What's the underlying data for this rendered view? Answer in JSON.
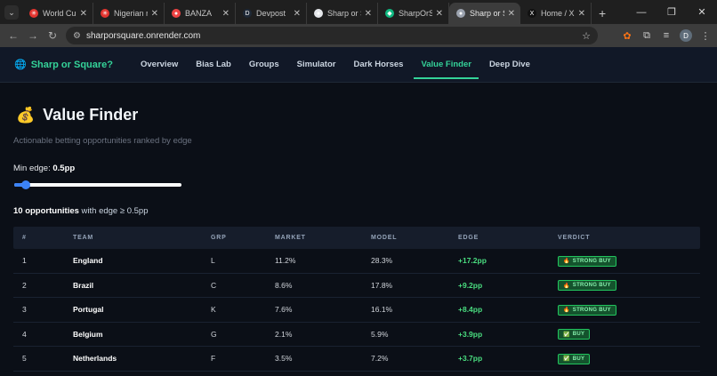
{
  "browser": {
    "tabs": [
      {
        "title": "World Cup",
        "favicon": "tm-icon",
        "color": "#e3342f",
        "glyph": "✳"
      },
      {
        "title": "Nigerian n",
        "favicon": "tm-icon",
        "color": "#e3342f",
        "glyph": "✳"
      },
      {
        "title": "BANZA",
        "favicon": "media-icon",
        "color": "#ef4444",
        "glyph": "●"
      },
      {
        "title": "Devpost",
        "favicon": "devpost-icon",
        "color": "#1f2937",
        "glyph": "D"
      },
      {
        "title": "Sharp or S",
        "favicon": "site-icon",
        "color": "#e5e7eb",
        "glyph": "●"
      },
      {
        "title": "SharpOrSc",
        "favicon": "render-icon",
        "color": "#10b981",
        "glyph": "◆"
      },
      {
        "title": "Sharp or S",
        "favicon": "globe-icon",
        "color": "#9ca3af",
        "glyph": "●"
      },
      {
        "title": "Home / X",
        "favicon": "x-icon",
        "color": "#111111",
        "glyph": "X"
      }
    ],
    "active_tab_index": 6,
    "url": "sharporsquare.onrender.com",
    "profile_initial": "D"
  },
  "app": {
    "brand": "Sharp or Square?",
    "nav": [
      "Overview",
      "Bias Lab",
      "Groups",
      "Simulator",
      "Dark Horses",
      "Value Finder",
      "Deep Dive"
    ],
    "active_nav": "Value Finder"
  },
  "page": {
    "title": "Value Finder",
    "subtitle": "Actionable betting opportunities ranked by edge",
    "min_edge_label": "Min edge:",
    "min_edge_value": "0.5pp",
    "slider_fraction": 0.05,
    "count_bold": "10 opportunities",
    "count_rest": " with edge ≥ 0.5pp"
  },
  "table": {
    "headers": [
      "#",
      "TEAM",
      "GRP",
      "MARKET",
      "MODEL",
      "EDGE",
      "VERDICT"
    ],
    "rows": [
      {
        "rank": "1",
        "team": "England",
        "grp": "L",
        "market": "11.2%",
        "model": "28.3%",
        "edge": "+17.2pp",
        "verdict": "STRONG BUY",
        "icon": "fire-icon"
      },
      {
        "rank": "2",
        "team": "Brazil",
        "grp": "C",
        "market": "8.6%",
        "model": "17.8%",
        "edge": "+9.2pp",
        "verdict": "STRONG BUY",
        "icon": "fire-icon"
      },
      {
        "rank": "3",
        "team": "Portugal",
        "grp": "K",
        "market": "7.6%",
        "model": "16.1%",
        "edge": "+8.4pp",
        "verdict": "STRONG BUY",
        "icon": "fire-icon"
      },
      {
        "rank": "4",
        "team": "Belgium",
        "grp": "G",
        "market": "2.1%",
        "model": "5.9%",
        "edge": "+3.9pp",
        "verdict": "BUY",
        "icon": "check-icon"
      },
      {
        "rank": "5",
        "team": "Netherlands",
        "grp": "F",
        "market": "3.5%",
        "model": "7.2%",
        "edge": "+3.7pp",
        "verdict": "BUY",
        "icon": "check-icon"
      }
    ]
  }
}
